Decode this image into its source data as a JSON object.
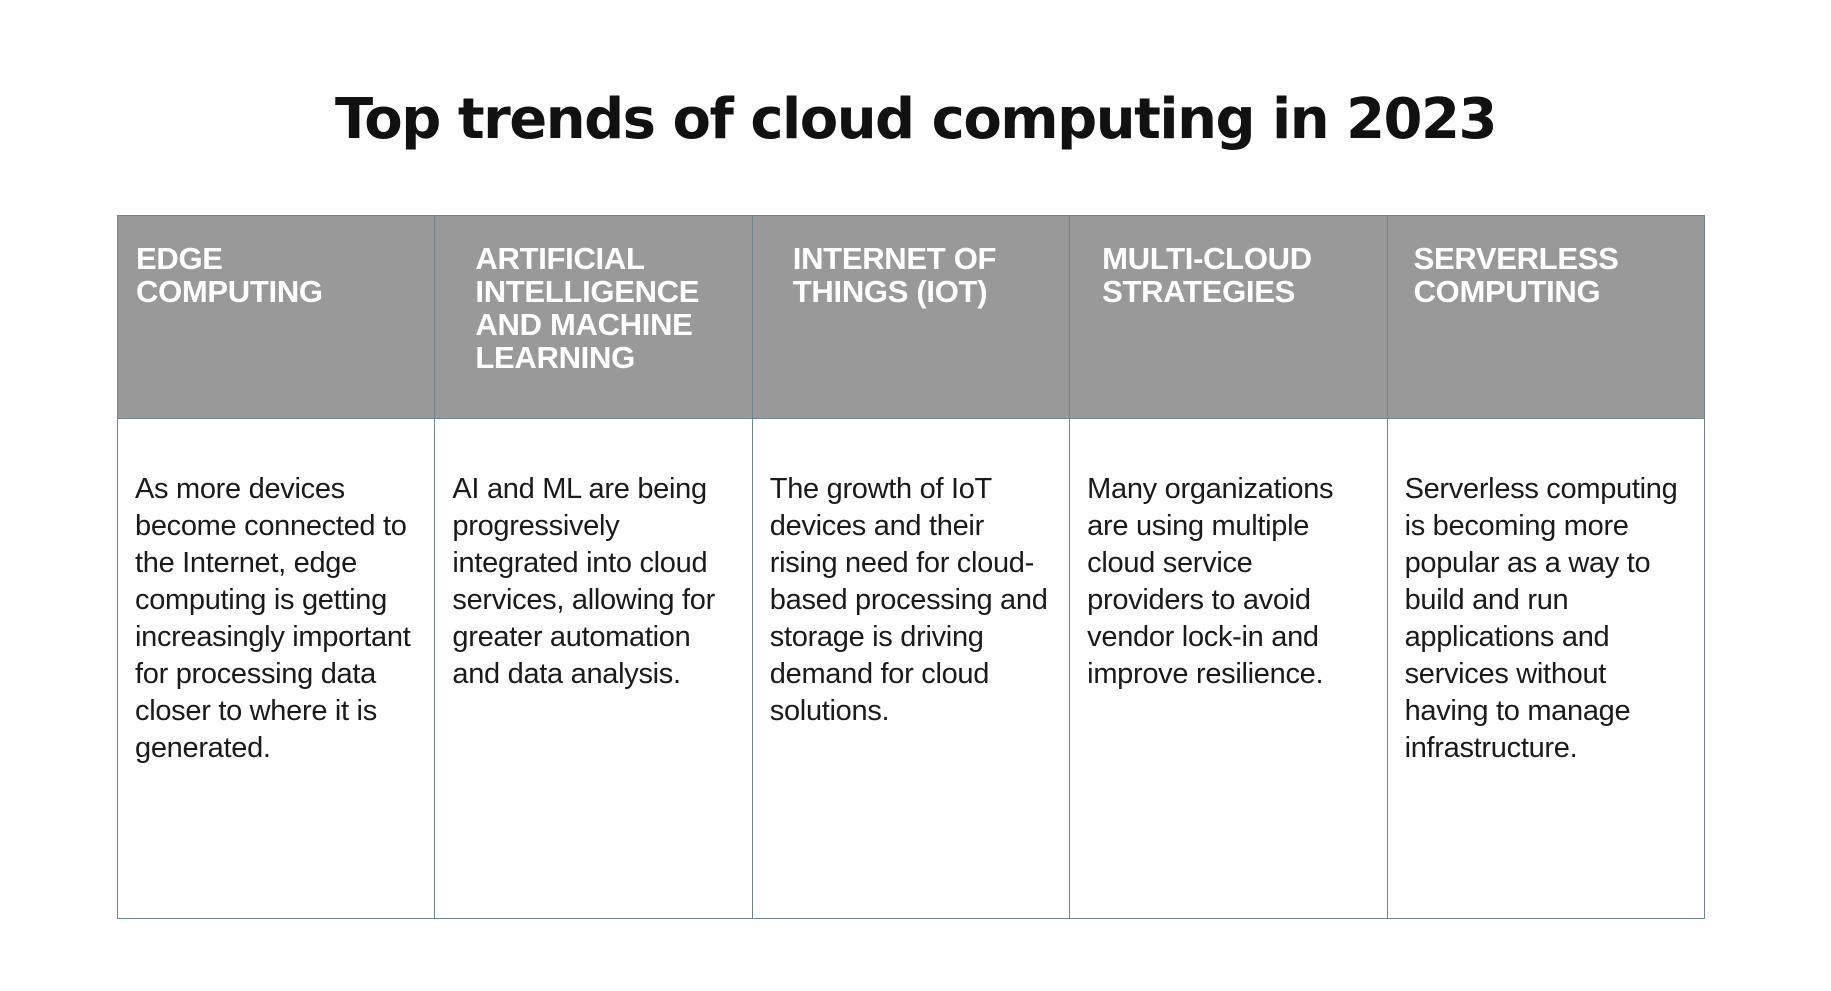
{
  "title": "Top trends of cloud computing in 2023",
  "trends": [
    {
      "heading": "EDGE COMPUTING",
      "description": "As more devices become connected to the Internet, edge computing is getting increasingly important for processing data closer to where it is generated."
    },
    {
      "heading": "ARTIFICIAL INTELLIGENCE AND MACHINE LEARNING",
      "description": "AI and ML are being progressively integrated into cloud services, allowing for greater automation and data analysis."
    },
    {
      "heading": "INTERNET OF THINGS (IOT)",
      "description": "The growth of IoT devices and their rising need for cloud-based processing and storage is driving demand for cloud solutions."
    },
    {
      "heading": "MULTI-CLOUD STRATEGIES",
      "description": "Many organizations are using multiple cloud service providers to avoid vendor lock-in and improve resilience."
    },
    {
      "heading": "SERVERLESS COMPUTING",
      "description": "Serverless computing is becoming more popular as a way to build and run applications and services without having to manage infrastructure."
    }
  ],
  "colors": {
    "header_background": "#999999",
    "header_text": "#ffffff",
    "border": "#6f8590",
    "body_text": "#1a1a1a"
  }
}
